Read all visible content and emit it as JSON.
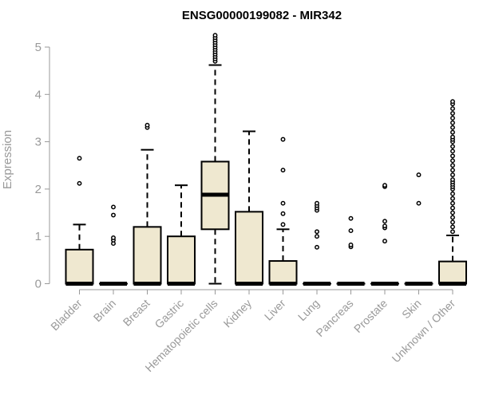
{
  "chart_data": {
    "type": "boxplot",
    "title": "ENSG00000199082 - MIR342",
    "xlabel": "",
    "ylabel": "Expression",
    "ylim": [
      0,
      5.3
    ],
    "yticks": [
      0,
      1,
      2,
      3,
      4,
      5
    ],
    "grid": false,
    "box_fill": "#efe8d0",
    "categories": [
      "Bladder",
      "Brain",
      "Breast",
      "Gastric",
      "Hematopoietic cells",
      "Kidney",
      "Liver",
      "Lung",
      "Pancreas",
      "Prostate",
      "Skin",
      "Unknown / Other"
    ],
    "boxes": [
      {
        "q1": 0,
        "median": 0,
        "q3": 0.72,
        "whisker_low": 0,
        "whisker_high": 1.25,
        "outliers": [
          2.12,
          2.65
        ]
      },
      {
        "q1": 0,
        "median": 0,
        "q3": 0,
        "whisker_low": 0,
        "whisker_high": 0,
        "outliers": [
          0.85,
          0.92,
          0.97,
          1.45,
          1.62
        ]
      },
      {
        "q1": 0,
        "median": 0,
        "q3": 1.2,
        "whisker_low": 0,
        "whisker_high": 2.83,
        "outliers": [
          3.3,
          3.35
        ]
      },
      {
        "q1": 0,
        "median": 0,
        "q3": 1.0,
        "whisker_low": 0,
        "whisker_high": 2.08,
        "outliers": []
      },
      {
        "q1": 1.15,
        "median": 1.88,
        "q3": 2.58,
        "whisker_low": 0,
        "whisker_high": 4.62,
        "outliers": [
          4.7,
          4.75,
          4.8,
          4.85,
          4.9,
          4.95,
          5.0,
          5.05,
          5.1,
          5.15,
          5.2,
          5.25
        ]
      },
      {
        "q1": 0,
        "median": 0,
        "q3": 1.52,
        "whisker_low": 0,
        "whisker_high": 3.22,
        "outliers": []
      },
      {
        "q1": 0,
        "median": 0,
        "q3": 0.48,
        "whisker_low": 0,
        "whisker_high": 1.15,
        "outliers": [
          1.25,
          1.48,
          1.7,
          2.4,
          3.05
        ]
      },
      {
        "q1": 0,
        "median": 0,
        "q3": 0,
        "whisker_low": 0,
        "whisker_high": 0,
        "outliers": [
          0.77,
          1.0,
          1.1,
          1.55,
          1.6,
          1.65,
          1.7
        ]
      },
      {
        "q1": 0,
        "median": 0,
        "q3": 0,
        "whisker_low": 0,
        "whisker_high": 0,
        "outliers": [
          0.78,
          0.82,
          1.12,
          1.38
        ]
      },
      {
        "q1": 0,
        "median": 0,
        "q3": 0,
        "whisker_low": 0,
        "whisker_high": 0,
        "outliers": [
          0.9,
          1.18,
          1.22,
          1.32,
          2.05,
          2.08
        ]
      },
      {
        "q1": 0,
        "median": 0,
        "q3": 0,
        "whisker_low": 0,
        "whisker_high": 0,
        "outliers": [
          1.7,
          2.3
        ]
      },
      {
        "q1": 0,
        "median": 0,
        "q3": 0.47,
        "whisker_low": 0,
        "whisker_high": 1.02,
        "outliers": [
          1.1,
          1.2,
          1.3,
          1.4,
          1.5,
          1.6,
          1.7,
          1.8,
          1.9,
          2.0,
          2.05,
          2.1,
          2.15,
          2.2,
          2.3,
          2.4,
          2.5,
          2.6,
          2.7,
          2.8,
          2.9,
          3.0,
          3.05,
          3.1,
          3.2,
          3.3,
          3.4,
          3.5,
          3.6,
          3.7,
          3.8,
          3.85
        ]
      }
    ]
  }
}
